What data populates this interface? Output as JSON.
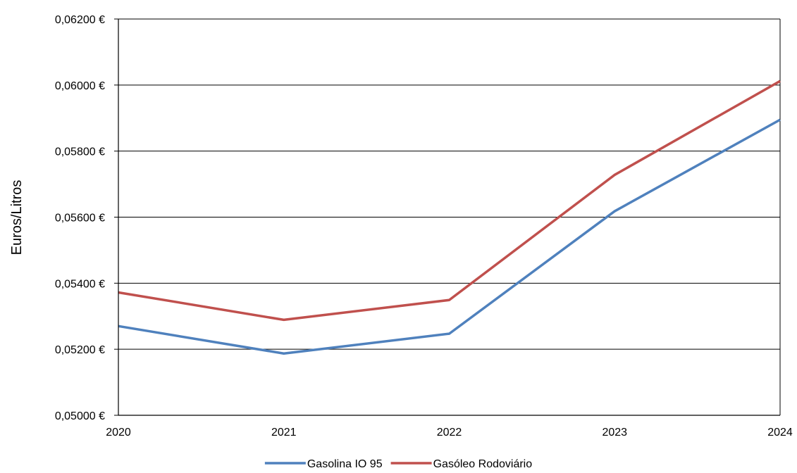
{
  "chart_data": {
    "type": "line",
    "title": "",
    "xlabel": "",
    "ylabel": "Euros/Litros",
    "x": [
      "2020",
      "2021",
      "2022",
      "2023",
      "2024"
    ],
    "ylim": [
      0.05,
      0.062
    ],
    "yticks": [
      0.05,
      0.052,
      0.054,
      0.056,
      0.058,
      0.06,
      0.062
    ],
    "ytick_labels": [
      "0,05000 €",
      "0,05200 €",
      "0,05400 €",
      "0,05600 €",
      "0,05800 €",
      "0,06000 €",
      "0,06200 €"
    ],
    "grid": true,
    "legend_position": "bottom",
    "series": [
      {
        "name": "Gasolina IO 95",
        "color": "#4F81BD",
        "values": [
          0.0527,
          0.05187,
          0.05247,
          0.05618,
          0.05895
        ]
      },
      {
        "name": "Gasóleo Rodoviário",
        "color": "#C0504D",
        "values": [
          0.05372,
          0.05289,
          0.05349,
          0.05728,
          0.06012
        ]
      }
    ]
  }
}
